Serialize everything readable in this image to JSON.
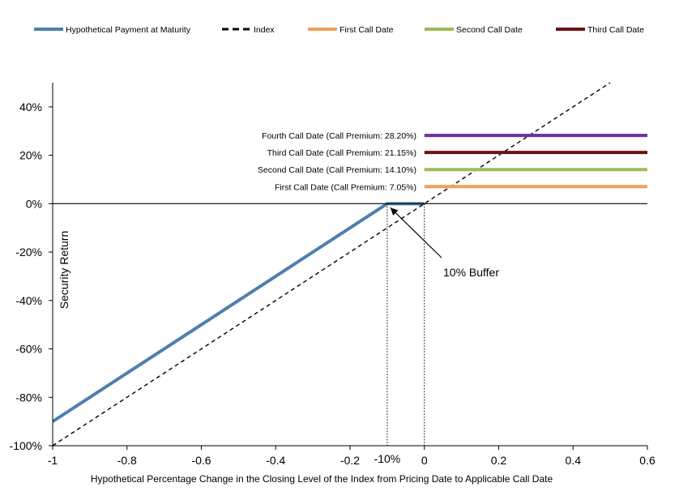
{
  "chart_data": {
    "type": "line",
    "title": "",
    "xlabel": "Hypothetical Percentage Change in the Closing Level of the Index from Pricing Date to Applicable Call Date",
    "ylabel": "Security Return",
    "xlim": [
      -1,
      0.6
    ],
    "ylim": [
      -100,
      50
    ],
    "x_ticks": [
      -1,
      -0.8,
      -0.6,
      -0.4,
      -0.2,
      0,
      0.2,
      0.4,
      0.6
    ],
    "x_tick_labels": [
      "-1",
      "-0.8",
      "-0.6",
      "-0.4",
      "-0.2",
      "0",
      "0.2",
      "0.4",
      "0.6"
    ],
    "y_ticks": [
      -100,
      -80,
      -60,
      -40,
      -20,
      0,
      20,
      40
    ],
    "y_tick_labels": [
      "-100%",
      "-80%",
      "-60%",
      "-40%",
      "-20%",
      "0%",
      "20%",
      "40%"
    ],
    "grid": false,
    "legend_position": "top",
    "legend": [
      {
        "label": "Hypothetical Payment at Maturity",
        "color": "#4f7fae",
        "style": "solid"
      },
      {
        "label": "Index",
        "color": "#000000",
        "style": "dashed"
      },
      {
        "label": "First Call Date",
        "color": "#f0a05a",
        "style": "solid"
      },
      {
        "label": "Second Call Date",
        "color": "#9bbb59",
        "style": "solid"
      },
      {
        "label": "Third Call Date",
        "color": "#6b1216",
        "style": "solid"
      }
    ],
    "series": [
      {
        "name": "Hypothetical Payment at Maturity",
        "color": "#4f7fae",
        "style": "solid",
        "points": [
          [
            -1,
            -90
          ],
          [
            -0.1,
            0
          ],
          [
            0,
            0
          ]
        ]
      },
      {
        "name": "Index",
        "color": "#000000",
        "style": "dashed",
        "points": [
          [
            -1,
            -100
          ],
          [
            0.5,
            50
          ]
        ]
      },
      {
        "name": "First Call Date",
        "color": "#f0a05a",
        "style": "solid",
        "points": [
          [
            0,
            7.05
          ],
          [
            0.6,
            7.05
          ]
        ]
      },
      {
        "name": "Second Call Date",
        "color": "#9bbb59",
        "style": "solid",
        "points": [
          [
            0,
            14.1
          ],
          [
            0.6,
            14.1
          ]
        ]
      },
      {
        "name": "Third Call Date",
        "color": "#6b1216",
        "style": "solid",
        "points": [
          [
            0,
            21.15
          ],
          [
            0.6,
            21.15
          ]
        ]
      },
      {
        "name": "Fourth Call Date",
        "color": "#7030a0",
        "style": "solid",
        "points": [
          [
            0,
            28.2
          ],
          [
            0.6,
            28.2
          ]
        ]
      }
    ],
    "line_labels": [
      {
        "text": "Fourth Call Date (Call Premium: 28.20%)",
        "y": 28.2
      },
      {
        "text": "Third Call Date (Call Premium: 21.15%)",
        "y": 21.15
      },
      {
        "text": "Second Call Date (Call Premium: 14.10%)",
        "y": 14.1
      },
      {
        "text": "First Call Date (Call Premium: 7.05%)",
        "y": 7.05
      }
    ],
    "reference_lines": [
      {
        "x": -0.1,
        "label": "-10%"
      },
      {
        "x": 0
      }
    ],
    "annotation": {
      "text": "10% Buffer",
      "arrow_to": [
        -0.1,
        0
      ]
    }
  }
}
